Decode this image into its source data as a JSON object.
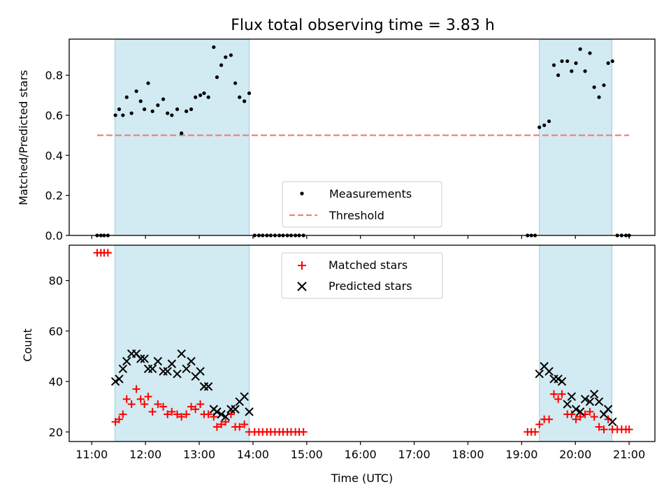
{
  "chart_data": {
    "type": "scatter",
    "title": "Flux total observing time = 3.83 h",
    "xlabel": "Time (UTC)",
    "x_ticks": [
      {
        "value": 11,
        "label": "11:00"
      },
      {
        "value": 12,
        "label": "12:00"
      },
      {
        "value": 13,
        "label": "13:00"
      },
      {
        "value": 14,
        "label": "14:00"
      },
      {
        "value": 15,
        "label": "15:00"
      },
      {
        "value": 16,
        "label": "16:00"
      },
      {
        "value": 17,
        "label": "17:00"
      },
      {
        "value": 18,
        "label": "18:00"
      },
      {
        "value": 19,
        "label": "19:00"
      },
      {
        "value": 20,
        "label": "20:00"
      },
      {
        "value": 21,
        "label": "21:00"
      }
    ],
    "xlim": [
      10.58,
      21.48
    ],
    "highlight_regions": [
      [
        11.43,
        13.93
      ],
      [
        19.33,
        20.68
      ]
    ],
    "highlight_color": "#add8e6",
    "panels": [
      {
        "name": "ratio",
        "ylabel": "Matched/Predicted stars",
        "ylim": [
          0,
          0.98
        ],
        "y_ticks": [
          0.0,
          0.2,
          0.4,
          0.6,
          0.8
        ],
        "y_tick_labels": [
          "0.0",
          "0.2",
          "0.4",
          "0.6",
          "0.8"
        ],
        "threshold": {
          "value": 0.5,
          "x_range": [
            11.1,
            21.0
          ],
          "color": "#f08080",
          "name": "Threshold"
        },
        "series": [
          {
            "name": "Measurements",
            "marker": "dot",
            "color": "#000000",
            "points": [
              [
                11.1,
                0.0
              ],
              [
                11.17,
                0.0
              ],
              [
                11.23,
                0.0
              ],
              [
                11.3,
                0.0
              ],
              [
                11.44,
                0.6
              ],
              [
                11.51,
                0.63
              ],
              [
                11.58,
                0.6
              ],
              [
                11.65,
                0.69
              ],
              [
                11.74,
                0.61
              ],
              [
                11.83,
                0.72
              ],
              [
                11.91,
                0.67
              ],
              [
                11.98,
                0.63
              ],
              [
                12.05,
                0.76
              ],
              [
                12.13,
                0.62
              ],
              [
                12.23,
                0.65
              ],
              [
                12.33,
                0.68
              ],
              [
                12.41,
                0.61
              ],
              [
                12.49,
                0.6
              ],
              [
                12.59,
                0.63
              ],
              [
                12.67,
                0.51
              ],
              [
                12.76,
                0.62
              ],
              [
                12.85,
                0.63
              ],
              [
                12.93,
                0.69
              ],
              [
                13.02,
                0.7
              ],
              [
                13.09,
                0.71
              ],
              [
                13.17,
                0.69
              ],
              [
                13.27,
                0.94
              ],
              [
                13.33,
                0.79
              ],
              [
                13.41,
                0.85
              ],
              [
                13.49,
                0.89
              ],
              [
                13.59,
                0.9
              ],
              [
                13.67,
                0.76
              ],
              [
                13.75,
                0.69
              ],
              [
                13.84,
                0.67
              ],
              [
                13.93,
                0.71
              ],
              [
                14.03,
                0.0
              ],
              [
                14.11,
                0.0
              ],
              [
                14.18,
                0.0
              ],
              [
                14.26,
                0.0
              ],
              [
                14.33,
                0.0
              ],
              [
                14.41,
                0.0
              ],
              [
                14.49,
                0.0
              ],
              [
                14.56,
                0.0
              ],
              [
                14.64,
                0.0
              ],
              [
                14.71,
                0.0
              ],
              [
                14.79,
                0.0
              ],
              [
                14.86,
                0.0
              ],
              [
                14.94,
                0.0
              ],
              [
                19.11,
                0.0
              ],
              [
                19.18,
                0.0
              ],
              [
                19.25,
                0.0
              ],
              [
                19.33,
                0.54
              ],
              [
                19.42,
                0.55
              ],
              [
                19.51,
                0.57
              ],
              [
                19.6,
                0.85
              ],
              [
                19.68,
                0.8
              ],
              [
                19.75,
                0.87
              ],
              [
                19.85,
                0.87
              ],
              [
                19.93,
                0.82
              ],
              [
                20.01,
                0.86
              ],
              [
                20.09,
                0.93
              ],
              [
                20.18,
                0.82
              ],
              [
                20.27,
                0.91
              ],
              [
                20.35,
                0.74
              ],
              [
                20.44,
                0.69
              ],
              [
                20.53,
                0.75
              ],
              [
                20.61,
                0.86
              ],
              [
                20.69,
                0.87
              ],
              [
                20.78,
                0.0
              ],
              [
                20.86,
                0.0
              ],
              [
                20.94,
                0.0
              ],
              [
                21.0,
                0.0
              ]
            ]
          }
        ],
        "legend": {
          "position": "lower-center",
          "entries": [
            "Measurements",
            "Threshold"
          ]
        }
      },
      {
        "name": "counts",
        "ylabel": "Count",
        "ylim": [
          16.2,
          94
        ],
        "y_ticks": [
          20,
          40,
          60,
          80
        ],
        "y_tick_labels": [
          "20",
          "40",
          "60",
          "80"
        ],
        "series": [
          {
            "name": "Matched stars",
            "marker": "plus",
            "color": "#ff0000",
            "points": [
              [
                11.1,
                91
              ],
              [
                11.17,
                91
              ],
              [
                11.23,
                91
              ],
              [
                11.3,
                91
              ],
              [
                11.44,
                24
              ],
              [
                11.51,
                25
              ],
              [
                11.58,
                27
              ],
              [
                11.65,
                33
              ],
              [
                11.74,
                31
              ],
              [
                11.83,
                37
              ],
              [
                11.91,
                33
              ],
              [
                11.98,
                31
              ],
              [
                12.05,
                34
              ],
              [
                12.13,
                28
              ],
              [
                12.23,
                31
              ],
              [
                12.33,
                30
              ],
              [
                12.41,
                27
              ],
              [
                12.49,
                28
              ],
              [
                12.59,
                27
              ],
              [
                12.67,
                26
              ],
              [
                12.76,
                27
              ],
              [
                12.85,
                30
              ],
              [
                12.93,
                29
              ],
              [
                13.02,
                31
              ],
              [
                13.09,
                27
              ],
              [
                13.17,
                27
              ],
              [
                13.27,
                26
              ],
              [
                13.33,
                22
              ],
              [
                13.41,
                23
              ],
              [
                13.49,
                24
              ],
              [
                13.59,
                27
              ],
              [
                13.67,
                22
              ],
              [
                13.75,
                22
              ],
              [
                13.84,
                23
              ],
              [
                13.93,
                20
              ],
              [
                14.03,
                20
              ],
              [
                14.11,
                20
              ],
              [
                14.18,
                20
              ],
              [
                14.26,
                20
              ],
              [
                14.33,
                20
              ],
              [
                14.41,
                20
              ],
              [
                14.49,
                20
              ],
              [
                14.56,
                20
              ],
              [
                14.64,
                20
              ],
              [
                14.71,
                20
              ],
              [
                14.79,
                20
              ],
              [
                14.86,
                20
              ],
              [
                14.94,
                20
              ],
              [
                19.11,
                20
              ],
              [
                19.18,
                20
              ],
              [
                19.25,
                20
              ],
              [
                19.33,
                23
              ],
              [
                19.42,
                25
              ],
              [
                19.51,
                25
              ],
              [
                19.6,
                35
              ],
              [
                19.68,
                33
              ],
              [
                19.75,
                35
              ],
              [
                19.85,
                27
              ],
              [
                19.93,
                27
              ],
              [
                20.01,
                25
              ],
              [
                20.09,
                26
              ],
              [
                20.18,
                27
              ],
              [
                20.27,
                28
              ],
              [
                20.35,
                26
              ],
              [
                20.44,
                22
              ],
              [
                20.53,
                21
              ],
              [
                20.61,
                25
              ],
              [
                20.69,
                21
              ],
              [
                20.78,
                21
              ],
              [
                20.86,
                21
              ],
              [
                20.94,
                21
              ],
              [
                21.0,
                21
              ]
            ]
          },
          {
            "name": "Predicted stars",
            "marker": "x",
            "color": "#000000",
            "points": [
              [
                11.44,
                40
              ],
              [
                11.51,
                41
              ],
              [
                11.58,
                45
              ],
              [
                11.65,
                48
              ],
              [
                11.74,
                51
              ],
              [
                11.83,
                51
              ],
              [
                11.91,
                49
              ],
              [
                11.98,
                49
              ],
              [
                12.05,
                45
              ],
              [
                12.13,
                45
              ],
              [
                12.23,
                48
              ],
              [
                12.33,
                44
              ],
              [
                12.41,
                44
              ],
              [
                12.49,
                47
              ],
              [
                12.59,
                43
              ],
              [
                12.67,
                51
              ],
              [
                12.76,
                45
              ],
              [
                12.85,
                48
              ],
              [
                12.93,
                42
              ],
              [
                13.02,
                44
              ],
              [
                13.09,
                38
              ],
              [
                13.17,
                38
              ],
              [
                13.27,
                29
              ],
              [
                13.33,
                28
              ],
              [
                13.41,
                27
              ],
              [
                13.49,
                26
              ],
              [
                13.59,
                29
              ],
              [
                13.67,
                29
              ],
              [
                13.75,
                32
              ],
              [
                13.84,
                34
              ],
              [
                13.93,
                28
              ],
              [
                19.33,
                43
              ],
              [
                19.42,
                46
              ],
              [
                19.51,
                44
              ],
              [
                19.6,
                41
              ],
              [
                19.68,
                41
              ],
              [
                19.75,
                40
              ],
              [
                19.85,
                31
              ],
              [
                19.93,
                34
              ],
              [
                20.01,
                29
              ],
              [
                20.09,
                28
              ],
              [
                20.18,
                33
              ],
              [
                20.27,
                32
              ],
              [
                20.35,
                35
              ],
              [
                20.44,
                32
              ],
              [
                20.53,
                27
              ],
              [
                20.61,
                29
              ],
              [
                20.69,
                24
              ]
            ]
          }
        ],
        "legend": {
          "position": "upper-center",
          "entries": [
            "Matched stars",
            "Predicted stars"
          ]
        }
      }
    ]
  }
}
